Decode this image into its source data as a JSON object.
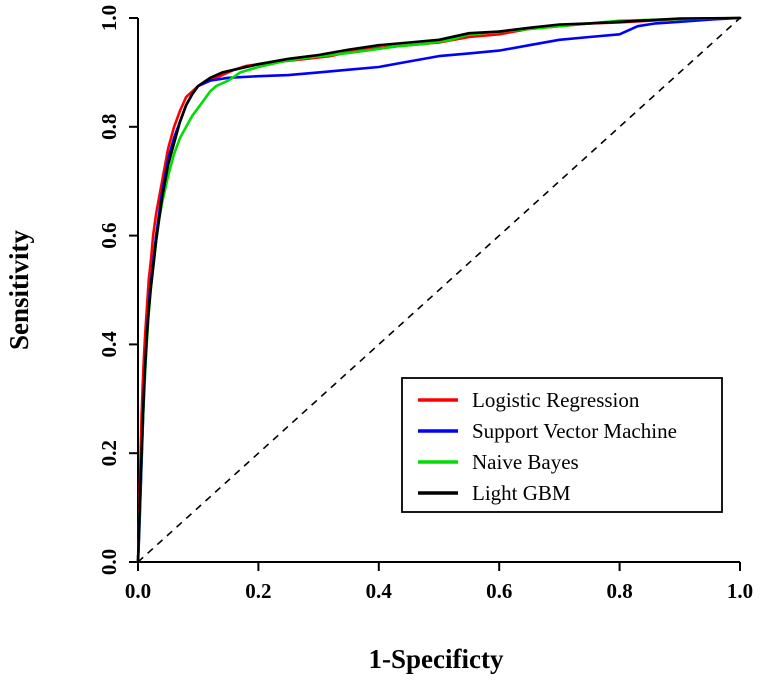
{
  "chart_data": {
    "type": "line",
    "title": "",
    "xlabel": "1-Specificty",
    "ylabel": "Sensitivity",
    "xlim": [
      0,
      1
    ],
    "ylim": [
      0,
      1
    ],
    "x_ticks": [
      "0.0",
      "0.2",
      "0.4",
      "0.6",
      "0.8",
      "1.0"
    ],
    "y_ticks": [
      "0.0",
      "0.2",
      "0.4",
      "0.6",
      "0.8",
      "1.0"
    ],
    "grid": false,
    "legend_position": "inside lower-right",
    "reference_line": {
      "style": "dashed",
      "color": "#000000",
      "from": [
        0,
        0
      ],
      "to": [
        1,
        1
      ]
    },
    "series": [
      {
        "name": "Logistic Regression",
        "color": "#ff0000",
        "points": [
          [
            0,
            0
          ],
          [
            0.002,
            0.08
          ],
          [
            0.004,
            0.18
          ],
          [
            0.006,
            0.27
          ],
          [
            0.008,
            0.33
          ],
          [
            0.01,
            0.38
          ],
          [
            0.012,
            0.42
          ],
          [
            0.015,
            0.47
          ],
          [
            0.018,
            0.52
          ],
          [
            0.022,
            0.56
          ],
          [
            0.025,
            0.6
          ],
          [
            0.03,
            0.64
          ],
          [
            0.035,
            0.67
          ],
          [
            0.04,
            0.7
          ],
          [
            0.045,
            0.73
          ],
          [
            0.05,
            0.76
          ],
          [
            0.055,
            0.78
          ],
          [
            0.06,
            0.8
          ],
          [
            0.07,
            0.83
          ],
          [
            0.08,
            0.855
          ],
          [
            0.09,
            0.865
          ],
          [
            0.1,
            0.875
          ],
          [
            0.12,
            0.885
          ],
          [
            0.14,
            0.895
          ],
          [
            0.16,
            0.905
          ],
          [
            0.18,
            0.912
          ],
          [
            0.2,
            0.915
          ],
          [
            0.24,
            0.92
          ],
          [
            0.28,
            0.925
          ],
          [
            0.32,
            0.93
          ],
          [
            0.36,
            0.94
          ],
          [
            0.4,
            0.945
          ],
          [
            0.45,
            0.95
          ],
          [
            0.5,
            0.955
          ],
          [
            0.55,
            0.965
          ],
          [
            0.6,
            0.97
          ],
          [
            0.65,
            0.98
          ],
          [
            0.7,
            0.985
          ],
          [
            0.75,
            0.99
          ],
          [
            0.8,
            0.992
          ],
          [
            0.85,
            0.995
          ],
          [
            0.9,
            0.998
          ],
          [
            1.0,
            1.0
          ]
        ]
      },
      {
        "name": "Support Vector Machine",
        "color": "#0000ff",
        "points": [
          [
            0,
            0
          ],
          [
            0.002,
            0.05
          ],
          [
            0.005,
            0.15
          ],
          [
            0.008,
            0.25
          ],
          [
            0.01,
            0.32
          ],
          [
            0.013,
            0.38
          ],
          [
            0.016,
            0.44
          ],
          [
            0.02,
            0.5
          ],
          [
            0.025,
            0.55
          ],
          [
            0.03,
            0.6
          ],
          [
            0.035,
            0.64
          ],
          [
            0.04,
            0.68
          ],
          [
            0.045,
            0.71
          ],
          [
            0.05,
            0.74
          ],
          [
            0.06,
            0.78
          ],
          [
            0.07,
            0.81
          ],
          [
            0.08,
            0.84
          ],
          [
            0.09,
            0.86
          ],
          [
            0.1,
            0.875
          ],
          [
            0.12,
            0.885
          ],
          [
            0.15,
            0.89
          ],
          [
            0.2,
            0.893
          ],
          [
            0.25,
            0.895
          ],
          [
            0.3,
            0.9
          ],
          [
            0.35,
            0.905
          ],
          [
            0.4,
            0.91
          ],
          [
            0.45,
            0.92
          ],
          [
            0.5,
            0.93
          ],
          [
            0.55,
            0.935
          ],
          [
            0.6,
            0.94
          ],
          [
            0.65,
            0.95
          ],
          [
            0.7,
            0.96
          ],
          [
            0.75,
            0.965
          ],
          [
            0.8,
            0.97
          ],
          [
            0.83,
            0.985
          ],
          [
            0.86,
            0.99
          ],
          [
            0.9,
            0.993
          ],
          [
            0.95,
            0.997
          ],
          [
            1.0,
            1.0
          ]
        ]
      },
      {
        "name": "Naive Bayes",
        "color": "#00dd00",
        "points": [
          [
            0,
            0
          ],
          [
            0.003,
            0.1
          ],
          [
            0.006,
            0.2
          ],
          [
            0.009,
            0.28
          ],
          [
            0.012,
            0.35
          ],
          [
            0.015,
            0.41
          ],
          [
            0.018,
            0.46
          ],
          [
            0.022,
            0.51
          ],
          [
            0.026,
            0.55
          ],
          [
            0.03,
            0.59
          ],
          [
            0.035,
            0.63
          ],
          [
            0.04,
            0.66
          ],
          [
            0.05,
            0.71
          ],
          [
            0.06,
            0.75
          ],
          [
            0.07,
            0.78
          ],
          [
            0.08,
            0.8
          ],
          [
            0.09,
            0.82
          ],
          [
            0.1,
            0.835
          ],
          [
            0.11,
            0.85
          ],
          [
            0.12,
            0.865
          ],
          [
            0.13,
            0.875
          ],
          [
            0.15,
            0.885
          ],
          [
            0.17,
            0.9
          ],
          [
            0.2,
            0.91
          ],
          [
            0.24,
            0.92
          ],
          [
            0.28,
            0.927
          ],
          [
            0.33,
            0.933
          ],
          [
            0.38,
            0.94
          ],
          [
            0.43,
            0.948
          ],
          [
            0.48,
            0.953
          ],
          [
            0.52,
            0.96
          ],
          [
            0.55,
            0.97
          ],
          [
            0.6,
            0.975
          ],
          [
            0.65,
            0.98
          ],
          [
            0.7,
            0.985
          ],
          [
            0.75,
            0.99
          ],
          [
            0.8,
            0.995
          ],
          [
            0.9,
            0.998
          ],
          [
            1.0,
            1.0
          ]
        ]
      },
      {
        "name": "Light GBM",
        "color": "#000000",
        "points": [
          [
            0,
            0
          ],
          [
            0.002,
            0.07
          ],
          [
            0.005,
            0.17
          ],
          [
            0.008,
            0.26
          ],
          [
            0.011,
            0.34
          ],
          [
            0.014,
            0.4
          ],
          [
            0.017,
            0.45
          ],
          [
            0.021,
            0.5
          ],
          [
            0.025,
            0.54
          ],
          [
            0.03,
            0.59
          ],
          [
            0.035,
            0.63
          ],
          [
            0.04,
            0.67
          ],
          [
            0.045,
            0.7
          ],
          [
            0.05,
            0.73
          ],
          [
            0.06,
            0.77
          ],
          [
            0.07,
            0.81
          ],
          [
            0.08,
            0.84
          ],
          [
            0.09,
            0.86
          ],
          [
            0.1,
            0.875
          ],
          [
            0.12,
            0.89
          ],
          [
            0.14,
            0.9
          ],
          [
            0.16,
            0.905
          ],
          [
            0.18,
            0.91
          ],
          [
            0.2,
            0.915
          ],
          [
            0.25,
            0.925
          ],
          [
            0.3,
            0.932
          ],
          [
            0.35,
            0.942
          ],
          [
            0.4,
            0.95
          ],
          [
            0.45,
            0.955
          ],
          [
            0.5,
            0.96
          ],
          [
            0.55,
            0.972
          ],
          [
            0.6,
            0.975
          ],
          [
            0.65,
            0.982
          ],
          [
            0.7,
            0.988
          ],
          [
            0.75,
            0.99
          ],
          [
            0.8,
            0.993
          ],
          [
            0.85,
            0.996
          ],
          [
            0.9,
            0.999
          ],
          [
            1.0,
            1.0
          ]
        ]
      }
    ]
  }
}
